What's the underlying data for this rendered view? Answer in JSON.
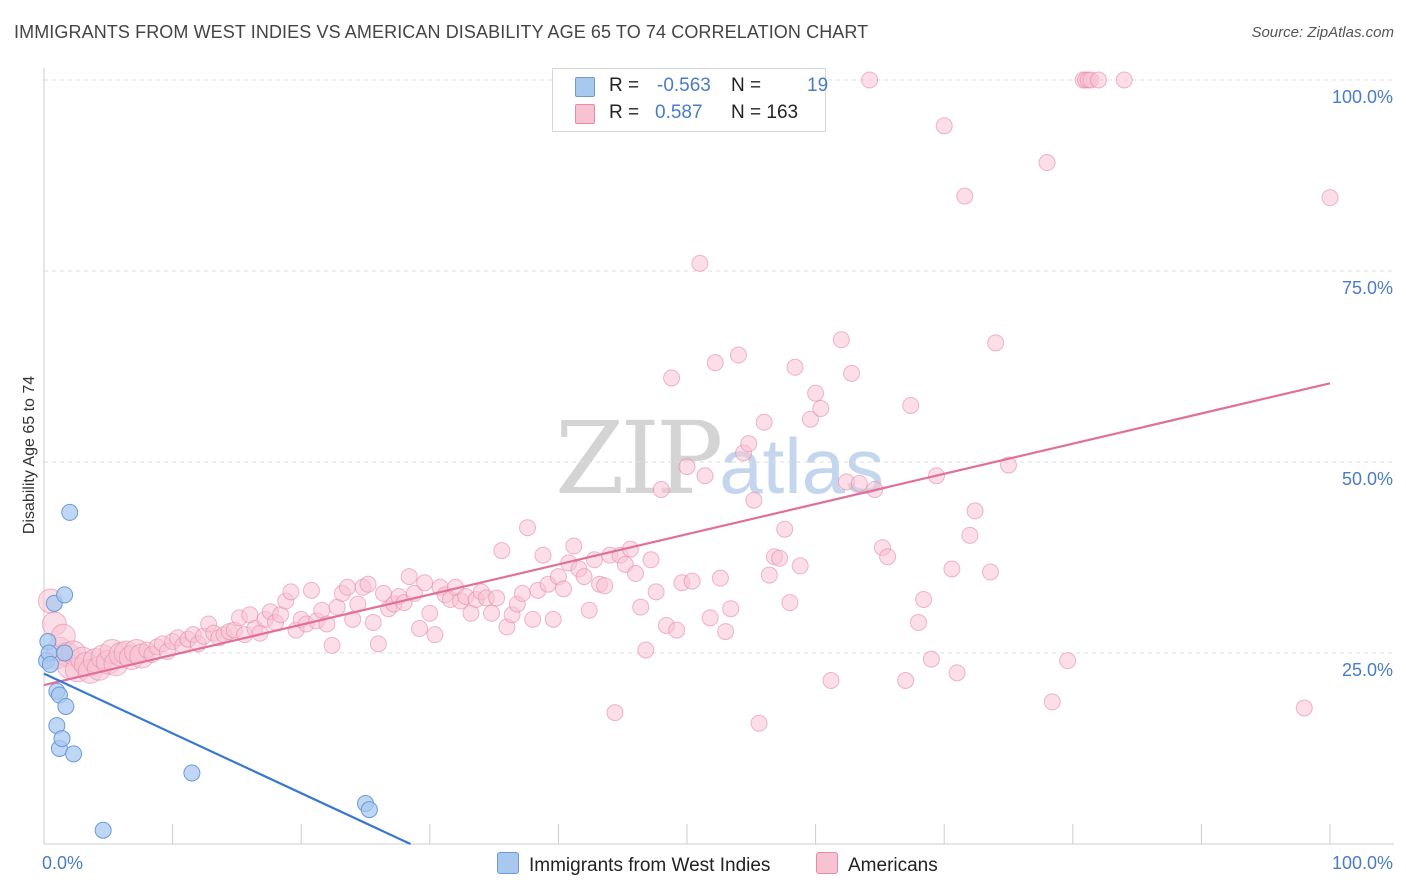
{
  "header": {
    "title": "IMMIGRANTS FROM WEST INDIES VS AMERICAN DISABILITY AGE 65 TO 74 CORRELATION CHART",
    "source": "Source: ZipAtlas.com"
  },
  "watermark": {
    "zip": "ZIP",
    "atlas": "atlas"
  },
  "legend": {
    "rows": [
      {
        "r_label": "R =",
        "r_value": "-0.563",
        "n_label": "N =",
        "n_value": "19",
        "color": "#a9c8f0",
        "border": "#6b9bd6"
      },
      {
        "r_label": "R =",
        "r_value": "0.587",
        "n_label": "N = 163",
        "n_value": "",
        "color": "#f7c3d3",
        "border": "#e58aa8"
      }
    ]
  },
  "bottom_legend": {
    "series_a": "Immigrants from West Indies",
    "series_b": "Americans"
  },
  "chart_data": {
    "type": "scatter",
    "title": "IMMIGRANTS FROM WEST INDIES VS AMERICAN DISABILITY AGE 65 TO 74 CORRELATION CHART",
    "xlabel": "",
    "ylabel": "Disability Age 65 to 74",
    "xlim": [
      0,
      100
    ],
    "ylim": [
      0,
      100
    ],
    "x_tick_labels": [
      "0.0%",
      "100.0%"
    ],
    "y_tick_labels": [
      "25.0%",
      "50.0%",
      "75.0%",
      "100.0%"
    ],
    "y_ticks": [
      25,
      50,
      75,
      100
    ],
    "grid": true,
    "colors": {
      "blue": "#6b9bd6",
      "blue_fill": "#a9c8f0",
      "pink": "#e58aa8",
      "pink_fill": "#f7c3d3",
      "blue_line": "#3a78d0",
      "pink_line": "#e0709a"
    },
    "series": [
      {
        "name": "Immigrants from West Indies",
        "stats": {
          "R": -0.563,
          "N": 19
        },
        "trend": [
          [
            0,
            22.3
          ],
          [
            28.5,
            0
          ]
        ],
        "points": [
          [
            0.2,
            24.0
          ],
          [
            0.3,
            26.5
          ],
          [
            0.4,
            25.0
          ],
          [
            0.5,
            23.5
          ],
          [
            0.8,
            31.5
          ],
          [
            1.0,
            20.0
          ],
          [
            1.2,
            19.5
          ],
          [
            1.0,
            15.5
          ],
          [
            1.2,
            12.5
          ],
          [
            1.4,
            13.8
          ],
          [
            1.6,
            25.0
          ],
          [
            1.7,
            18.0
          ],
          [
            1.6,
            32.6
          ],
          [
            2.0,
            43.4
          ],
          [
            2.3,
            11.8
          ],
          [
            4.6,
            1.8
          ],
          [
            11.5,
            9.3
          ],
          [
            25.0,
            5.3
          ],
          [
            25.3,
            4.5
          ]
        ]
      },
      {
        "name": "Americans",
        "stats": {
          "R": 0.587,
          "N": 163
        },
        "trend": [
          [
            0,
            20.8
          ],
          [
            100,
            60.3
          ]
        ],
        "points": [
          [
            0.5,
            31.8
          ],
          [
            0.8,
            28.8
          ],
          [
            1.0,
            24.5
          ],
          [
            1.2,
            25.5
          ],
          [
            1.5,
            27.2
          ],
          [
            1.8,
            24.8
          ],
          [
            2.0,
            23.2
          ],
          [
            2.3,
            25.0
          ],
          [
            2.6,
            22.8
          ],
          [
            3.0,
            24.2
          ],
          [
            3.3,
            23.5
          ],
          [
            3.6,
            22.6
          ],
          [
            4.0,
            24.0
          ],
          [
            4.3,
            23.0
          ],
          [
            4.6,
            24.5
          ],
          [
            5.0,
            23.8
          ],
          [
            5.3,
            25.2
          ],
          [
            5.6,
            23.6
          ],
          [
            6.0,
            24.8
          ],
          [
            6.4,
            25.0
          ],
          [
            6.8,
            24.4
          ],
          [
            7.2,
            25.2
          ],
          [
            7.6,
            24.6
          ],
          [
            8.0,
            25.4
          ],
          [
            8.4,
            24.8
          ],
          [
            8.8,
            25.8
          ],
          [
            9.2,
            26.2
          ],
          [
            9.6,
            25.2
          ],
          [
            10.0,
            26.5
          ],
          [
            10.4,
            27.0
          ],
          [
            10.8,
            26.0
          ],
          [
            11.2,
            26.8
          ],
          [
            11.6,
            27.4
          ],
          [
            12.0,
            26.2
          ],
          [
            12.4,
            27.2
          ],
          [
            12.8,
            28.8
          ],
          [
            13.2,
            27.6
          ],
          [
            13.6,
            27.0
          ],
          [
            14.0,
            27.4
          ],
          [
            14.4,
            27.8
          ],
          [
            14.8,
            28.0
          ],
          [
            15.2,
            29.6
          ],
          [
            15.6,
            27.4
          ],
          [
            16.0,
            30.0
          ],
          [
            16.4,
            28.2
          ],
          [
            16.8,
            27.6
          ],
          [
            17.2,
            29.4
          ],
          [
            17.6,
            30.4
          ],
          [
            18.0,
            29.0
          ],
          [
            18.4,
            30.0
          ],
          [
            18.8,
            31.8
          ],
          [
            19.2,
            33.0
          ],
          [
            19.6,
            28.0
          ],
          [
            20.0,
            29.4
          ],
          [
            20.4,
            28.8
          ],
          [
            20.8,
            33.2
          ],
          [
            21.2,
            29.2
          ],
          [
            21.6,
            30.6
          ],
          [
            22.0,
            28.8
          ],
          [
            22.4,
            26.0
          ],
          [
            22.8,
            31.0
          ],
          [
            23.2,
            32.8
          ],
          [
            23.6,
            33.6
          ],
          [
            24.0,
            29.4
          ],
          [
            24.4,
            31.4
          ],
          [
            24.8,
            33.6
          ],
          [
            25.2,
            34.0
          ],
          [
            25.6,
            29.0
          ],
          [
            26.0,
            26.2
          ],
          [
            26.4,
            32.8
          ],
          [
            26.8,
            30.8
          ],
          [
            27.2,
            31.4
          ],
          [
            27.6,
            32.4
          ],
          [
            28.0,
            31.6
          ],
          [
            28.4,
            35.0
          ],
          [
            28.8,
            32.8
          ],
          [
            29.2,
            28.2
          ],
          [
            29.6,
            34.2
          ],
          [
            30.0,
            30.2
          ],
          [
            30.4,
            27.4
          ],
          [
            30.8,
            33.6
          ],
          [
            31.2,
            32.6
          ],
          [
            31.6,
            32.0
          ],
          [
            32.0,
            33.6
          ],
          [
            32.4,
            31.8
          ],
          [
            32.8,
            32.4
          ],
          [
            33.2,
            30.2
          ],
          [
            33.6,
            32.0
          ],
          [
            34.0,
            33.0
          ],
          [
            34.4,
            32.2
          ],
          [
            34.8,
            30.2
          ],
          [
            35.2,
            32.2
          ],
          [
            35.6,
            38.4
          ],
          [
            36.0,
            28.4
          ],
          [
            36.4,
            30.0
          ],
          [
            36.8,
            31.4
          ],
          [
            37.2,
            32.8
          ],
          [
            37.6,
            41.4
          ],
          [
            38.0,
            29.4
          ],
          [
            38.4,
            33.2
          ],
          [
            38.8,
            37.8
          ],
          [
            39.2,
            34.0
          ],
          [
            39.6,
            29.4
          ],
          [
            40.0,
            35.0
          ],
          [
            40.4,
            33.4
          ],
          [
            40.8,
            36.8
          ],
          [
            41.2,
            39.0
          ],
          [
            41.6,
            36.0
          ],
          [
            42.0,
            35.0
          ],
          [
            42.4,
            30.6
          ],
          [
            42.8,
            37.2
          ],
          [
            43.2,
            34.0
          ],
          [
            43.6,
            33.8
          ],
          [
            44.0,
            37.8
          ],
          [
            44.4,
            17.2
          ],
          [
            44.8,
            37.8
          ],
          [
            45.2,
            36.6
          ],
          [
            45.6,
            38.6
          ],
          [
            46.0,
            35.4
          ],
          [
            46.4,
            31.0
          ],
          [
            46.8,
            25.4
          ],
          [
            47.2,
            37.2
          ],
          [
            47.6,
            33.0
          ],
          [
            48.0,
            46.4
          ],
          [
            48.4,
            28.6
          ],
          [
            48.8,
            61.0
          ],
          [
            49.2,
            28.0
          ],
          [
            49.6,
            34.2
          ],
          [
            50.0,
            49.4
          ],
          [
            50.4,
            34.4
          ],
          [
            51.0,
            76.0
          ],
          [
            51.4,
            48.2
          ],
          [
            51.8,
            29.6
          ],
          [
            52.2,
            63.0
          ],
          [
            52.6,
            34.8
          ],
          [
            53.0,
            27.8
          ],
          [
            53.4,
            30.8
          ],
          [
            54.0,
            64.0
          ],
          [
            54.4,
            51.2
          ],
          [
            54.8,
            52.4
          ],
          [
            55.2,
            45.0
          ],
          [
            55.6,
            15.8
          ],
          [
            56.0,
            55.2
          ],
          [
            56.4,
            35.2
          ],
          [
            56.8,
            37.6
          ],
          [
            57.2,
            37.4
          ],
          [
            57.6,
            41.2
          ],
          [
            58.0,
            31.6
          ],
          [
            58.4,
            62.4
          ],
          [
            58.8,
            36.4
          ],
          [
            59.6,
            55.6
          ],
          [
            60.0,
            59.0
          ],
          [
            60.4,
            57.0
          ],
          [
            61.2,
            21.4
          ],
          [
            62.0,
            66.0
          ],
          [
            62.4,
            47.4
          ],
          [
            62.8,
            61.6
          ],
          [
            63.4,
            47.2
          ],
          [
            64.2,
            100.0
          ],
          [
            64.6,
            46.4
          ],
          [
            65.2,
            38.8
          ],
          [
            65.6,
            37.6
          ],
          [
            67.0,
            21.4
          ],
          [
            67.4,
            57.4
          ],
          [
            68.0,
            29.0
          ],
          [
            68.4,
            32.0
          ],
          [
            69.0,
            24.2
          ],
          [
            69.4,
            48.2
          ],
          [
            70.0,
            94.0
          ],
          [
            70.6,
            36.0
          ],
          [
            71.0,
            22.4
          ],
          [
            71.6,
            84.8
          ],
          [
            72.0,
            40.4
          ],
          [
            72.4,
            43.6
          ],
          [
            73.6,
            35.6
          ],
          [
            74.0,
            65.6
          ],
          [
            75.0,
            49.6
          ],
          [
            78.0,
            89.2
          ],
          [
            78.4,
            18.6
          ],
          [
            79.6,
            24.0
          ],
          [
            80.8,
            100.0
          ],
          [
            81.0,
            100.0
          ],
          [
            81.2,
            100.0
          ],
          [
            81.4,
            100.0
          ],
          [
            82.0,
            100.0
          ],
          [
            84.0,
            100.0
          ],
          [
            98.0,
            17.8
          ],
          [
            100.0,
            84.6
          ]
        ]
      }
    ]
  }
}
